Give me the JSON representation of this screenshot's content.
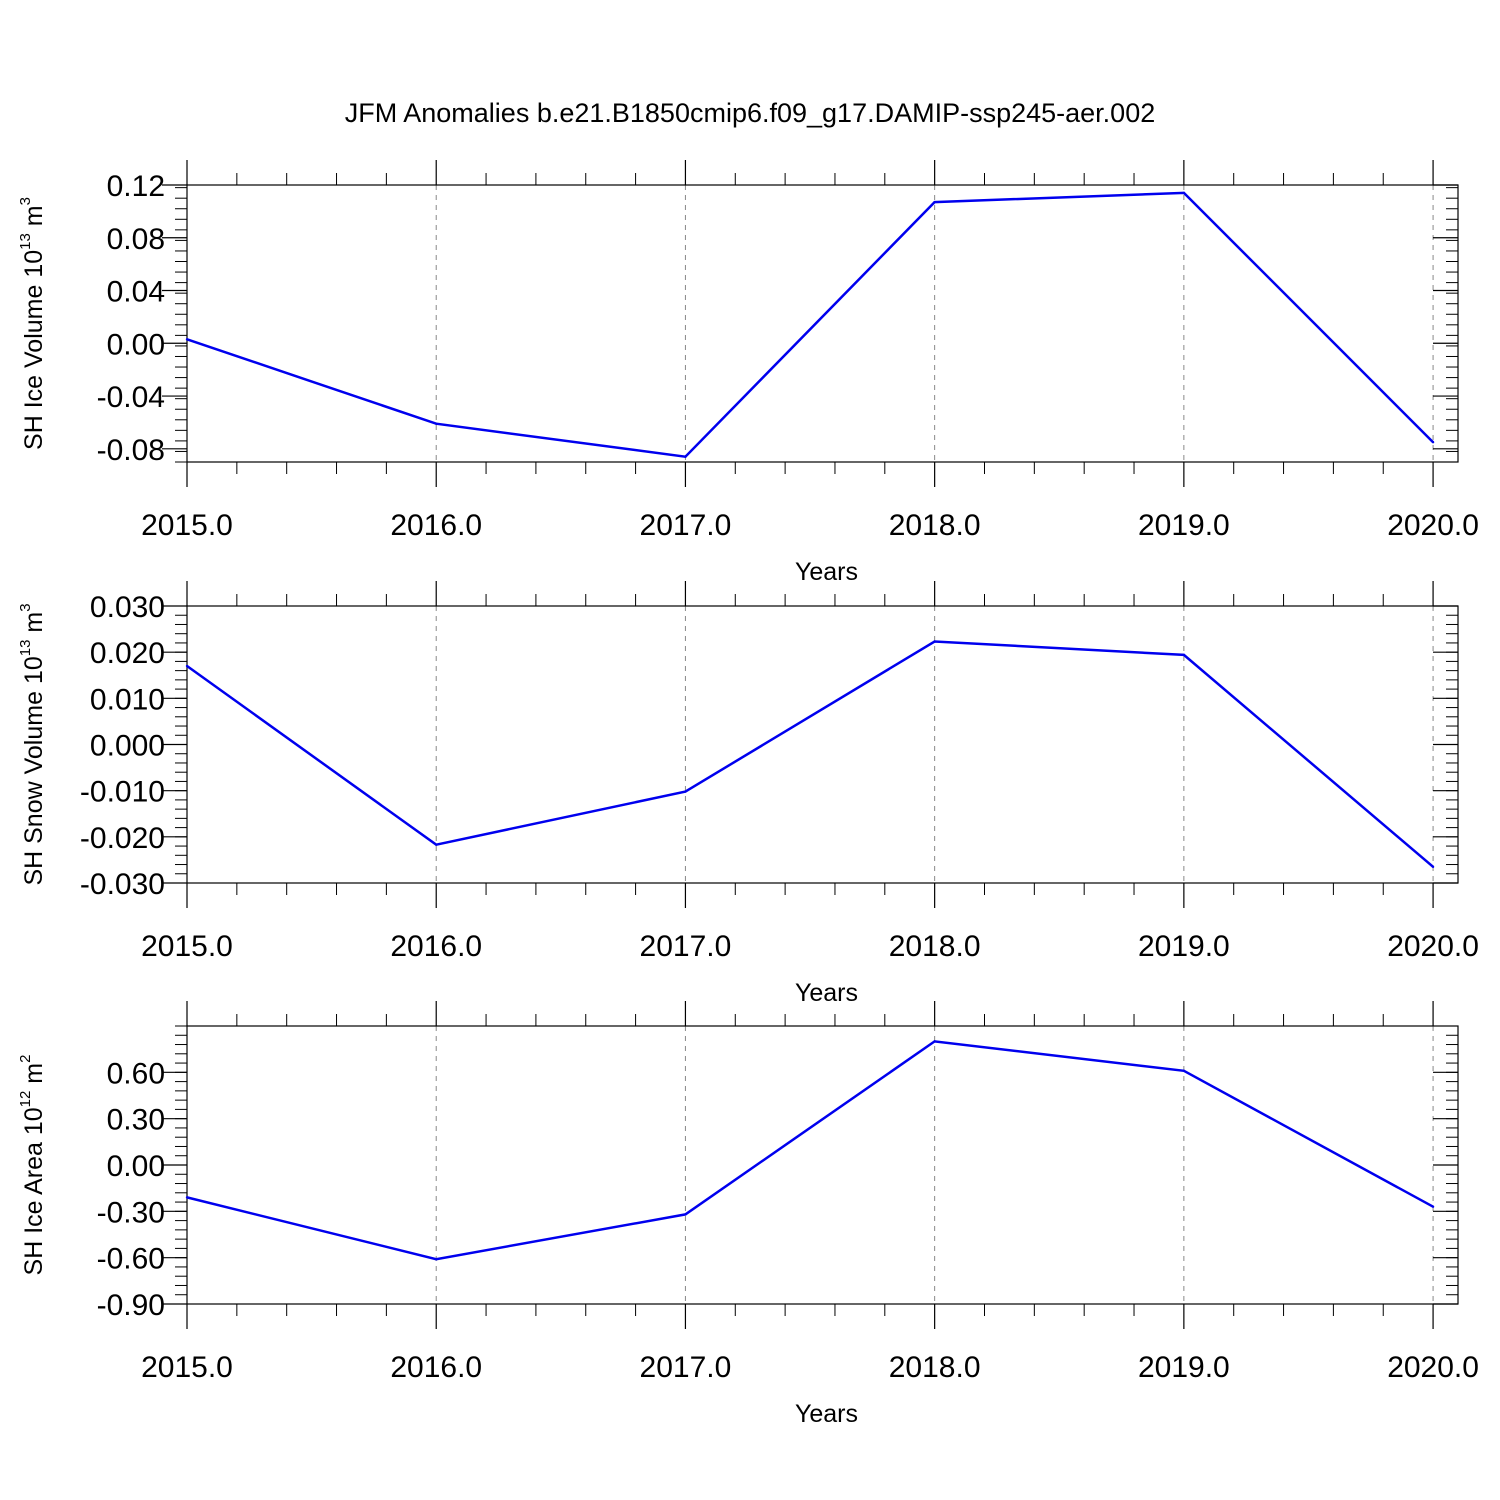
{
  "title": "JFM Anomalies b.e21.B1850cmip6.f09_g17.DAMIP-ssp245-aer.002",
  "chart_data": [
    {
      "type": "line",
      "ylabel": {
        "base": "SH Ice Volume 10",
        "exp": "13",
        "unit": " m",
        "unit_exp": "3"
      },
      "xlabel": "Years",
      "x": [
        2015,
        2016,
        2017,
        2018,
        2019,
        2020
      ],
      "x_tick_labels": [
        "2015.0",
        "2016.0",
        "2017.0",
        "2018.0",
        "2019.0",
        "2020.0"
      ],
      "series": [
        {
          "color": "#0000ee",
          "values": [
            0.003,
            -0.061,
            -0.086,
            0.107,
            0.114,
            -0.075
          ]
        }
      ],
      "xlim": [
        2015,
        2020.1
      ],
      "ylim": [
        -0.09,
        0.12
      ],
      "y_ticks": [
        -0.08,
        -0.04,
        0.0,
        0.04,
        0.08,
        0.12
      ],
      "y_tick_labels": [
        "-0.08",
        "-0.04",
        "0.00",
        "0.04",
        "0.08",
        "0.12"
      ],
      "y_minor_step": 0.008,
      "grid": "vertical dashed"
    },
    {
      "type": "line",
      "ylabel": {
        "base": "SH Snow Volume 10",
        "exp": "13",
        "unit": " m",
        "unit_exp": "3"
      },
      "xlabel": "Years",
      "x": [
        2015,
        2016,
        2017,
        2018,
        2019,
        2020
      ],
      "x_tick_labels": [
        "2015.0",
        "2016.0",
        "2017.0",
        "2018.0",
        "2019.0",
        "2020.0"
      ],
      "series": [
        {
          "color": "#0000ee",
          "values": [
            0.017,
            -0.0217,
            -0.0102,
            0.0223,
            0.0194,
            -0.0265
          ]
        }
      ],
      "xlim": [
        2015,
        2020.1
      ],
      "ylim": [
        -0.03,
        0.03
      ],
      "y_ticks": [
        -0.03,
        -0.02,
        -0.01,
        0.0,
        0.01,
        0.02,
        0.03
      ],
      "y_tick_labels": [
        "-0.030",
        "-0.020",
        "-0.010",
        "0.000",
        "0.010",
        "0.020",
        "0.030"
      ],
      "y_minor_step": 0.002,
      "grid": "vertical dashed"
    },
    {
      "type": "line",
      "ylabel": {
        "base": "SH Ice Area 10",
        "exp": "12",
        "unit": " m",
        "unit_exp": "2"
      },
      "xlabel": "Years",
      "x": [
        2015,
        2016,
        2017,
        2018,
        2019,
        2020
      ],
      "x_tick_labels": [
        "2015.0",
        "2016.0",
        "2017.0",
        "2018.0",
        "2019.0",
        "2020.0"
      ],
      "series": [
        {
          "color": "#0000ee",
          "values": [
            -0.21,
            -0.61,
            -0.32,
            0.8,
            0.61,
            -0.27
          ]
        }
      ],
      "xlim": [
        2015,
        2020.1
      ],
      "ylim": [
        -0.9,
        0.9
      ],
      "y_ticks": [
        -0.9,
        -0.6,
        -0.3,
        0.0,
        0.3,
        0.6
      ],
      "y_tick_labels": [
        "-0.90",
        "-0.60",
        "-0.30",
        "0.00",
        "0.30",
        "0.60"
      ],
      "y_minor_step": 0.06,
      "grid": "vertical dashed"
    }
  ]
}
